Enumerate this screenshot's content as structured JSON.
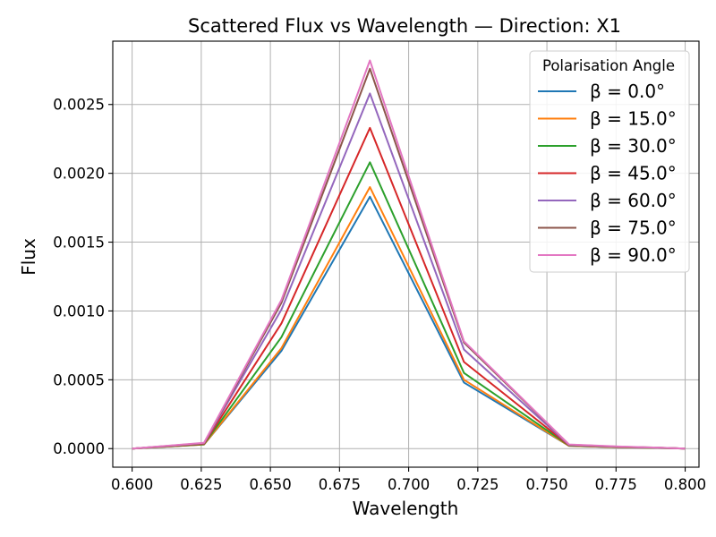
{
  "chart_data": {
    "type": "line",
    "title": "Scattered Flux vs Wavelength — Direction: X1",
    "xlabel": "Wavelength",
    "ylabel": "Flux",
    "xlim": [
      0.593,
      0.805
    ],
    "ylim": [
      -0.000135,
      0.00296
    ],
    "x_ticks": [
      "0.600",
      "0.625",
      "0.650",
      "0.675",
      "0.700",
      "0.725",
      "0.750",
      "0.775",
      "0.800"
    ],
    "x_tick_values": [
      0.6,
      0.625,
      0.65,
      0.675,
      0.7,
      0.725,
      0.75,
      0.775,
      0.8
    ],
    "y_ticks": [
      "0.0000",
      "0.0005",
      "0.0010",
      "0.0015",
      "0.0020",
      "0.0025"
    ],
    "y_tick_values": [
      0,
      0.0005,
      0.001,
      0.0015,
      0.002,
      0.0025
    ],
    "grid": true,
    "legend": {
      "title": "Polarisation Angle",
      "position": "top-right"
    },
    "x": [
      0.6,
      0.626,
      0.654,
      0.686,
      0.72,
      0.758,
      0.776,
      0.79,
      0.8
    ],
    "series": [
      {
        "name": "β = 0.0°",
        "color": "#1f77b4",
        "values": [
          0.0,
          3e-05,
          0.00071,
          0.00183,
          0.00048,
          2e-05,
          1e-05,
          5e-06,
          0.0
        ]
      },
      {
        "name": "β = 15.0°",
        "color": "#ff7f0e",
        "values": [
          0.0,
          3e-05,
          0.00073,
          0.0019,
          0.0005,
          2e-05,
          1e-05,
          5e-06,
          0.0
        ]
      },
      {
        "name": "β = 30.0°",
        "color": "#2ca02c",
        "values": [
          0.0,
          3.2e-05,
          0.00081,
          0.00208,
          0.00055,
          2.2e-05,
          1.1e-05,
          5e-06,
          0.0
        ]
      },
      {
        "name": "β = 45.0°",
        "color": "#d62728",
        "values": [
          0.0,
          3.5e-05,
          0.00091,
          0.00233,
          0.00063,
          2.4e-05,
          1.2e-05,
          6e-06,
          0.0
        ]
      },
      {
        "name": "β = 60.0°",
        "color": "#9467bd",
        "values": [
          0.0,
          3.8e-05,
          0.00101,
          0.00258,
          0.00072,
          2.6e-05,
          1.3e-05,
          6e-06,
          0.0
        ]
      },
      {
        "name": "β = 75.0°",
        "color": "#8c564b",
        "values": [
          0.0,
          4e-05,
          0.00106,
          0.00276,
          0.00077,
          2.8e-05,
          1.4e-05,
          7e-06,
          0.0
        ]
      },
      {
        "name": "β = 90.0°",
        "color": "#e377c2",
        "values": [
          0.0,
          4.2e-05,
          0.00108,
          0.00282,
          0.00078,
          3e-05,
          1.5e-05,
          7e-06,
          0.0
        ]
      }
    ]
  }
}
